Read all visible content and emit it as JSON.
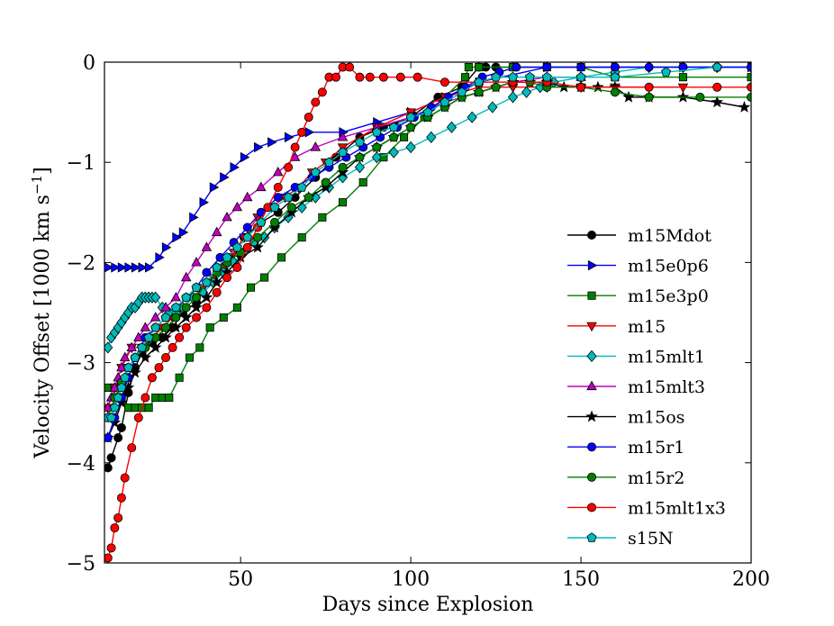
{
  "chart_data": {
    "type": "line",
    "xlabel": "Days since Explosion",
    "ylabel": "Velocity Offset [1000 km s",
    "ylabel_sup": "−1",
    "ylabel_close": "]",
    "xlim": [
      10,
      200
    ],
    "ylim": [
      -5,
      0
    ],
    "xticks": [
      50,
      100,
      150,
      200
    ],
    "yticks": [
      0,
      -1,
      -2,
      -3,
      -4,
      -5
    ],
    "xtick_labels": [
      "50",
      "100",
      "150",
      "200"
    ],
    "ytick_labels": [
      "0",
      "−1",
      "−2",
      "−3",
      "−4",
      "−5"
    ],
    "legend_position": "lower-right",
    "grid": false,
    "series": [
      {
        "name": "m15Mdot",
        "color": "#000000",
        "marker": "circle",
        "x": [
          11,
          12,
          14,
          15,
          17,
          19,
          21,
          24,
          27,
          30,
          33,
          37,
          40,
          43,
          47,
          51,
          56,
          61,
          66,
          72,
          78,
          85,
          92,
          100,
          108,
          115,
          120,
          122,
          125,
          130,
          140,
          160,
          180,
          200
        ],
        "y": [
          -4.05,
          -3.95,
          -3.75,
          -3.65,
          -3.3,
          -3.05,
          -2.9,
          -2.8,
          -2.75,
          -2.65,
          -2.5,
          -2.4,
          -2.2,
          -2.05,
          -1.95,
          -1.75,
          -1.6,
          -1.5,
          -1.35,
          -1.15,
          -0.95,
          -0.75,
          -0.65,
          -0.55,
          -0.35,
          -0.25,
          -0.05,
          -0.05,
          -0.05,
          -0.05,
          -0.05,
          -0.05,
          -0.05,
          -0.05
        ]
      },
      {
        "name": "m15e0p6",
        "color": "#0000ff",
        "marker": "triangle-right",
        "x": [
          11,
          13,
          15,
          17,
          19,
          21,
          23,
          26,
          28,
          31,
          33,
          36,
          39,
          42,
          45,
          48,
          51,
          55,
          59,
          64,
          70,
          80,
          90,
          100,
          110,
          120,
          140,
          160,
          180,
          200
        ],
        "y": [
          -2.05,
          -2.05,
          -2.05,
          -2.05,
          -2.05,
          -2.05,
          -2.05,
          -1.95,
          -1.85,
          -1.75,
          -1.7,
          -1.55,
          -1.4,
          -1.25,
          -1.15,
          -1.05,
          -0.95,
          -0.85,
          -0.8,
          -0.75,
          -0.7,
          -0.7,
          -0.6,
          -0.5,
          -0.35,
          -0.2,
          -0.05,
          -0.05,
          -0.05,
          -0.05
        ]
      },
      {
        "name": "m15e3p0",
        "color": "#008000",
        "marker": "square",
        "x": [
          11,
          13,
          15,
          17,
          19,
          21,
          23,
          25,
          27,
          29,
          32,
          35,
          38,
          41,
          45,
          49,
          53,
          57,
          62,
          68,
          74,
          80,
          86,
          92,
          98,
          104,
          110,
          116,
          117,
          120,
          130,
          140,
          150,
          160,
          180,
          200
        ],
        "y": [
          -3.25,
          -3.25,
          -3.35,
          -3.45,
          -3.45,
          -3.45,
          -3.45,
          -3.35,
          -3.35,
          -3.35,
          -3.15,
          -2.95,
          -2.85,
          -2.65,
          -2.55,
          -2.45,
          -2.25,
          -2.15,
          -1.95,
          -1.75,
          -1.55,
          -1.4,
          -1.2,
          -0.95,
          -0.75,
          -0.55,
          -0.35,
          -0.15,
          -0.05,
          -0.05,
          -0.05,
          -0.05,
          -0.05,
          -0.15,
          -0.15,
          -0.15
        ]
      },
      {
        "name": "m15",
        "color": "#ff0000",
        "marker": "triangle-down",
        "x": [
          11,
          13,
          15,
          18,
          21,
          24,
          27,
          30,
          33,
          36,
          39,
          42,
          45,
          48,
          51,
          55,
          59,
          63,
          67,
          71,
          75,
          80,
          90,
          100,
          110,
          120,
          130,
          140,
          150,
          160,
          180
        ],
        "y": [
          -3.45,
          -3.25,
          -3.05,
          -2.85,
          -2.85,
          -2.75,
          -2.65,
          -2.55,
          -2.45,
          -2.35,
          -2.25,
          -2.15,
          -2.05,
          -1.9,
          -1.75,
          -1.55,
          -1.45,
          -1.35,
          -1.25,
          -1.1,
          -1.0,
          -0.85,
          -0.65,
          -0.5,
          -0.35,
          -0.25,
          -0.25,
          -0.25,
          -0.25,
          -0.25,
          -0.25
        ]
      },
      {
        "name": "m15mlt1",
        "color": "#00bbbb",
        "marker": "diamond",
        "x": [
          11,
          12,
          13,
          14,
          15,
          16,
          17,
          18,
          19,
          20,
          21,
          22,
          23,
          24,
          25,
          27,
          29,
          31,
          33,
          36,
          39,
          42,
          45,
          48,
          51,
          54,
          57,
          60,
          64,
          68,
          72,
          76,
          80,
          85,
          90,
          95,
          100,
          106,
          112,
          118,
          124,
          130,
          134,
          138,
          142,
          150,
          160,
          170,
          180,
          190,
          200
        ],
        "y": [
          -2.85,
          -2.75,
          -2.7,
          -2.65,
          -2.6,
          -2.55,
          -2.5,
          -2.45,
          -2.45,
          -2.4,
          -2.35,
          -2.35,
          -2.35,
          -2.35,
          -2.35,
          -2.45,
          -2.5,
          -2.5,
          -2.45,
          -2.35,
          -2.3,
          -2.2,
          -2.1,
          -2.0,
          -1.9,
          -1.8,
          -1.75,
          -1.65,
          -1.55,
          -1.45,
          -1.35,
          -1.25,
          -1.15,
          -1.05,
          -0.95,
          -0.9,
          -0.85,
          -0.75,
          -0.65,
          -0.55,
          -0.45,
          -0.35,
          -0.3,
          -0.25,
          -0.2,
          -0.15,
          -0.1,
          -0.05,
          -0.05,
          -0.05,
          -0.05
        ]
      },
      {
        "name": "m15mlt3",
        "color": "#bf00bf",
        "marker": "triangle-up",
        "x": [
          11,
          12,
          13,
          14,
          15,
          16,
          18,
          20,
          22,
          25,
          28,
          31,
          34,
          37,
          40,
          43,
          46,
          49,
          52,
          56,
          61,
          66,
          72,
          80,
          90,
          100,
          110,
          120,
          130,
          140,
          150
        ],
        "y": [
          -3.45,
          -3.35,
          -3.25,
          -3.15,
          -3.05,
          -2.95,
          -2.85,
          -2.75,
          -2.65,
          -2.55,
          -2.45,
          -2.35,
          -2.15,
          -2.0,
          -1.85,
          -1.7,
          -1.55,
          -1.45,
          -1.35,
          -1.25,
          -1.1,
          -0.95,
          -0.85,
          -0.75,
          -0.65,
          -0.55,
          -0.4,
          -0.3,
          -0.2,
          -0.15,
          -0.15
        ]
      },
      {
        "name": "m15os",
        "color": "#000000",
        "marker": "star",
        "x": [
          11,
          13,
          15,
          17,
          19,
          22,
          25,
          28,
          31,
          34,
          37,
          40,
          43,
          46,
          50,
          55,
          60,
          65,
          70,
          75,
          80,
          85,
          90,
          95,
          100,
          105,
          110,
          115,
          120,
          125,
          130,
          135,
          140,
          145,
          150,
          155,
          160,
          164,
          170,
          180,
          190,
          198
        ],
        "y": [
          -3.75,
          -3.6,
          -3.4,
          -3.25,
          -3.1,
          -2.95,
          -2.85,
          -2.75,
          -2.65,
          -2.55,
          -2.45,
          -2.35,
          -2.2,
          -2.1,
          -1.95,
          -1.85,
          -1.65,
          -1.5,
          -1.35,
          -1.25,
          -1.1,
          -0.95,
          -0.85,
          -0.75,
          -0.65,
          -0.55,
          -0.45,
          -0.35,
          -0.3,
          -0.25,
          -0.2,
          -0.2,
          -0.2,
          -0.25,
          -0.25,
          -0.25,
          -0.25,
          -0.35,
          -0.35,
          -0.35,
          -0.4,
          -0.45
        ]
      },
      {
        "name": "m15r1",
        "color": "#0000ff",
        "marker": "circle",
        "x": [
          11,
          13,
          15,
          17,
          19,
          22,
          25,
          28,
          31,
          34,
          37,
          40,
          44,
          48,
          52,
          56,
          61,
          66,
          71,
          76,
          81,
          86,
          91,
          96,
          101,
          106,
          111,
          116,
          121,
          126,
          131,
          140,
          150,
          160,
          170,
          180,
          190,
          200
        ],
        "y": [
          -3.75,
          -3.55,
          -3.35,
          -3.15,
          -2.95,
          -2.75,
          -2.65,
          -2.55,
          -2.45,
          -2.35,
          -2.25,
          -2.1,
          -1.95,
          -1.8,
          -1.65,
          -1.5,
          -1.35,
          -1.25,
          -1.15,
          -1.05,
          -0.95,
          -0.85,
          -0.75,
          -0.65,
          -0.55,
          -0.45,
          -0.35,
          -0.25,
          -0.15,
          -0.1,
          -0.05,
          -0.05,
          -0.05,
          -0.05,
          -0.05,
          -0.05,
          -0.05,
          -0.05
        ]
      },
      {
        "name": "m15r2",
        "color": "#008000",
        "marker": "circle",
        "x": [
          11,
          13,
          15,
          17,
          19,
          22,
          25,
          28,
          31,
          34,
          37,
          40,
          43,
          46,
          50,
          55,
          60,
          65,
          70,
          75,
          80,
          85,
          90,
          95,
          100,
          105,
          110,
          115,
          120,
          125,
          130,
          135,
          140,
          150,
          160,
          170,
          185,
          200
        ],
        "y": [
          -3.55,
          -3.35,
          -3.2,
          -3.05,
          -2.95,
          -2.85,
          -2.75,
          -2.65,
          -2.55,
          -2.45,
          -2.35,
          -2.2,
          -2.1,
          -2.0,
          -1.9,
          -1.75,
          -1.6,
          -1.45,
          -1.35,
          -1.2,
          -1.05,
          -0.95,
          -0.85,
          -0.75,
          -0.65,
          -0.55,
          -0.45,
          -0.35,
          -0.3,
          -0.25,
          -0.2,
          -0.2,
          -0.25,
          -0.25,
          -0.3,
          -0.35,
          -0.35,
          -0.35
        ]
      },
      {
        "name": "m15mlt1x3",
        "color": "#ff0000",
        "marker": "circle",
        "x": [
          11,
          12,
          13,
          14,
          15,
          16,
          18,
          20,
          22,
          24,
          26,
          28,
          30,
          32,
          34,
          37,
          40,
          43,
          46,
          49,
          52,
          55,
          58,
          61,
          64,
          66,
          68,
          70,
          72,
          74,
          76,
          78,
          80,
          82,
          85,
          88,
          92,
          97,
          102,
          110,
          120,
          130,
          140,
          150,
          170,
          190,
          200
        ],
        "y": [
          -4.95,
          -4.85,
          -4.65,
          -4.55,
          -4.35,
          -4.15,
          -3.85,
          -3.55,
          -3.35,
          -3.15,
          -3.05,
          -2.95,
          -2.85,
          -2.75,
          -2.65,
          -2.55,
          -2.45,
          -2.3,
          -2.15,
          -2.05,
          -1.85,
          -1.65,
          -1.45,
          -1.25,
          -1.05,
          -0.85,
          -0.7,
          -0.55,
          -0.4,
          -0.3,
          -0.15,
          -0.15,
          -0.05,
          -0.05,
          -0.15,
          -0.15,
          -0.15,
          -0.15,
          -0.15,
          -0.2,
          -0.2,
          -0.2,
          -0.2,
          -0.25,
          -0.25,
          -0.25,
          -0.25
        ]
      },
      {
        "name": "s15N",
        "color": "#00bbbb",
        "marker": "pentagon",
        "x": [
          11,
          12,
          13,
          14,
          15,
          16,
          17,
          19,
          21,
          23,
          25,
          28,
          31,
          34,
          37,
          40,
          43,
          46,
          49,
          52,
          56,
          60,
          64,
          68,
          72,
          76,
          80,
          85,
          90,
          95,
          100,
          105,
          110,
          115,
          120,
          125,
          130,
          135,
          140,
          150,
          160,
          175,
          190
        ],
        "y": [
          -3.55,
          -3.55,
          -3.45,
          -3.35,
          -3.25,
          -3.15,
          -3.05,
          -2.95,
          -2.85,
          -2.75,
          -2.65,
          -2.55,
          -2.45,
          -2.35,
          -2.25,
          -2.2,
          -2.05,
          -1.95,
          -1.85,
          -1.75,
          -1.6,
          -1.45,
          -1.35,
          -1.25,
          -1.1,
          -1.0,
          -0.9,
          -0.8,
          -0.7,
          -0.65,
          -0.55,
          -0.5,
          -0.4,
          -0.3,
          -0.2,
          -0.15,
          -0.15,
          -0.15,
          -0.15,
          -0.15,
          -0.15,
          -0.1,
          -0.05
        ]
      }
    ]
  }
}
